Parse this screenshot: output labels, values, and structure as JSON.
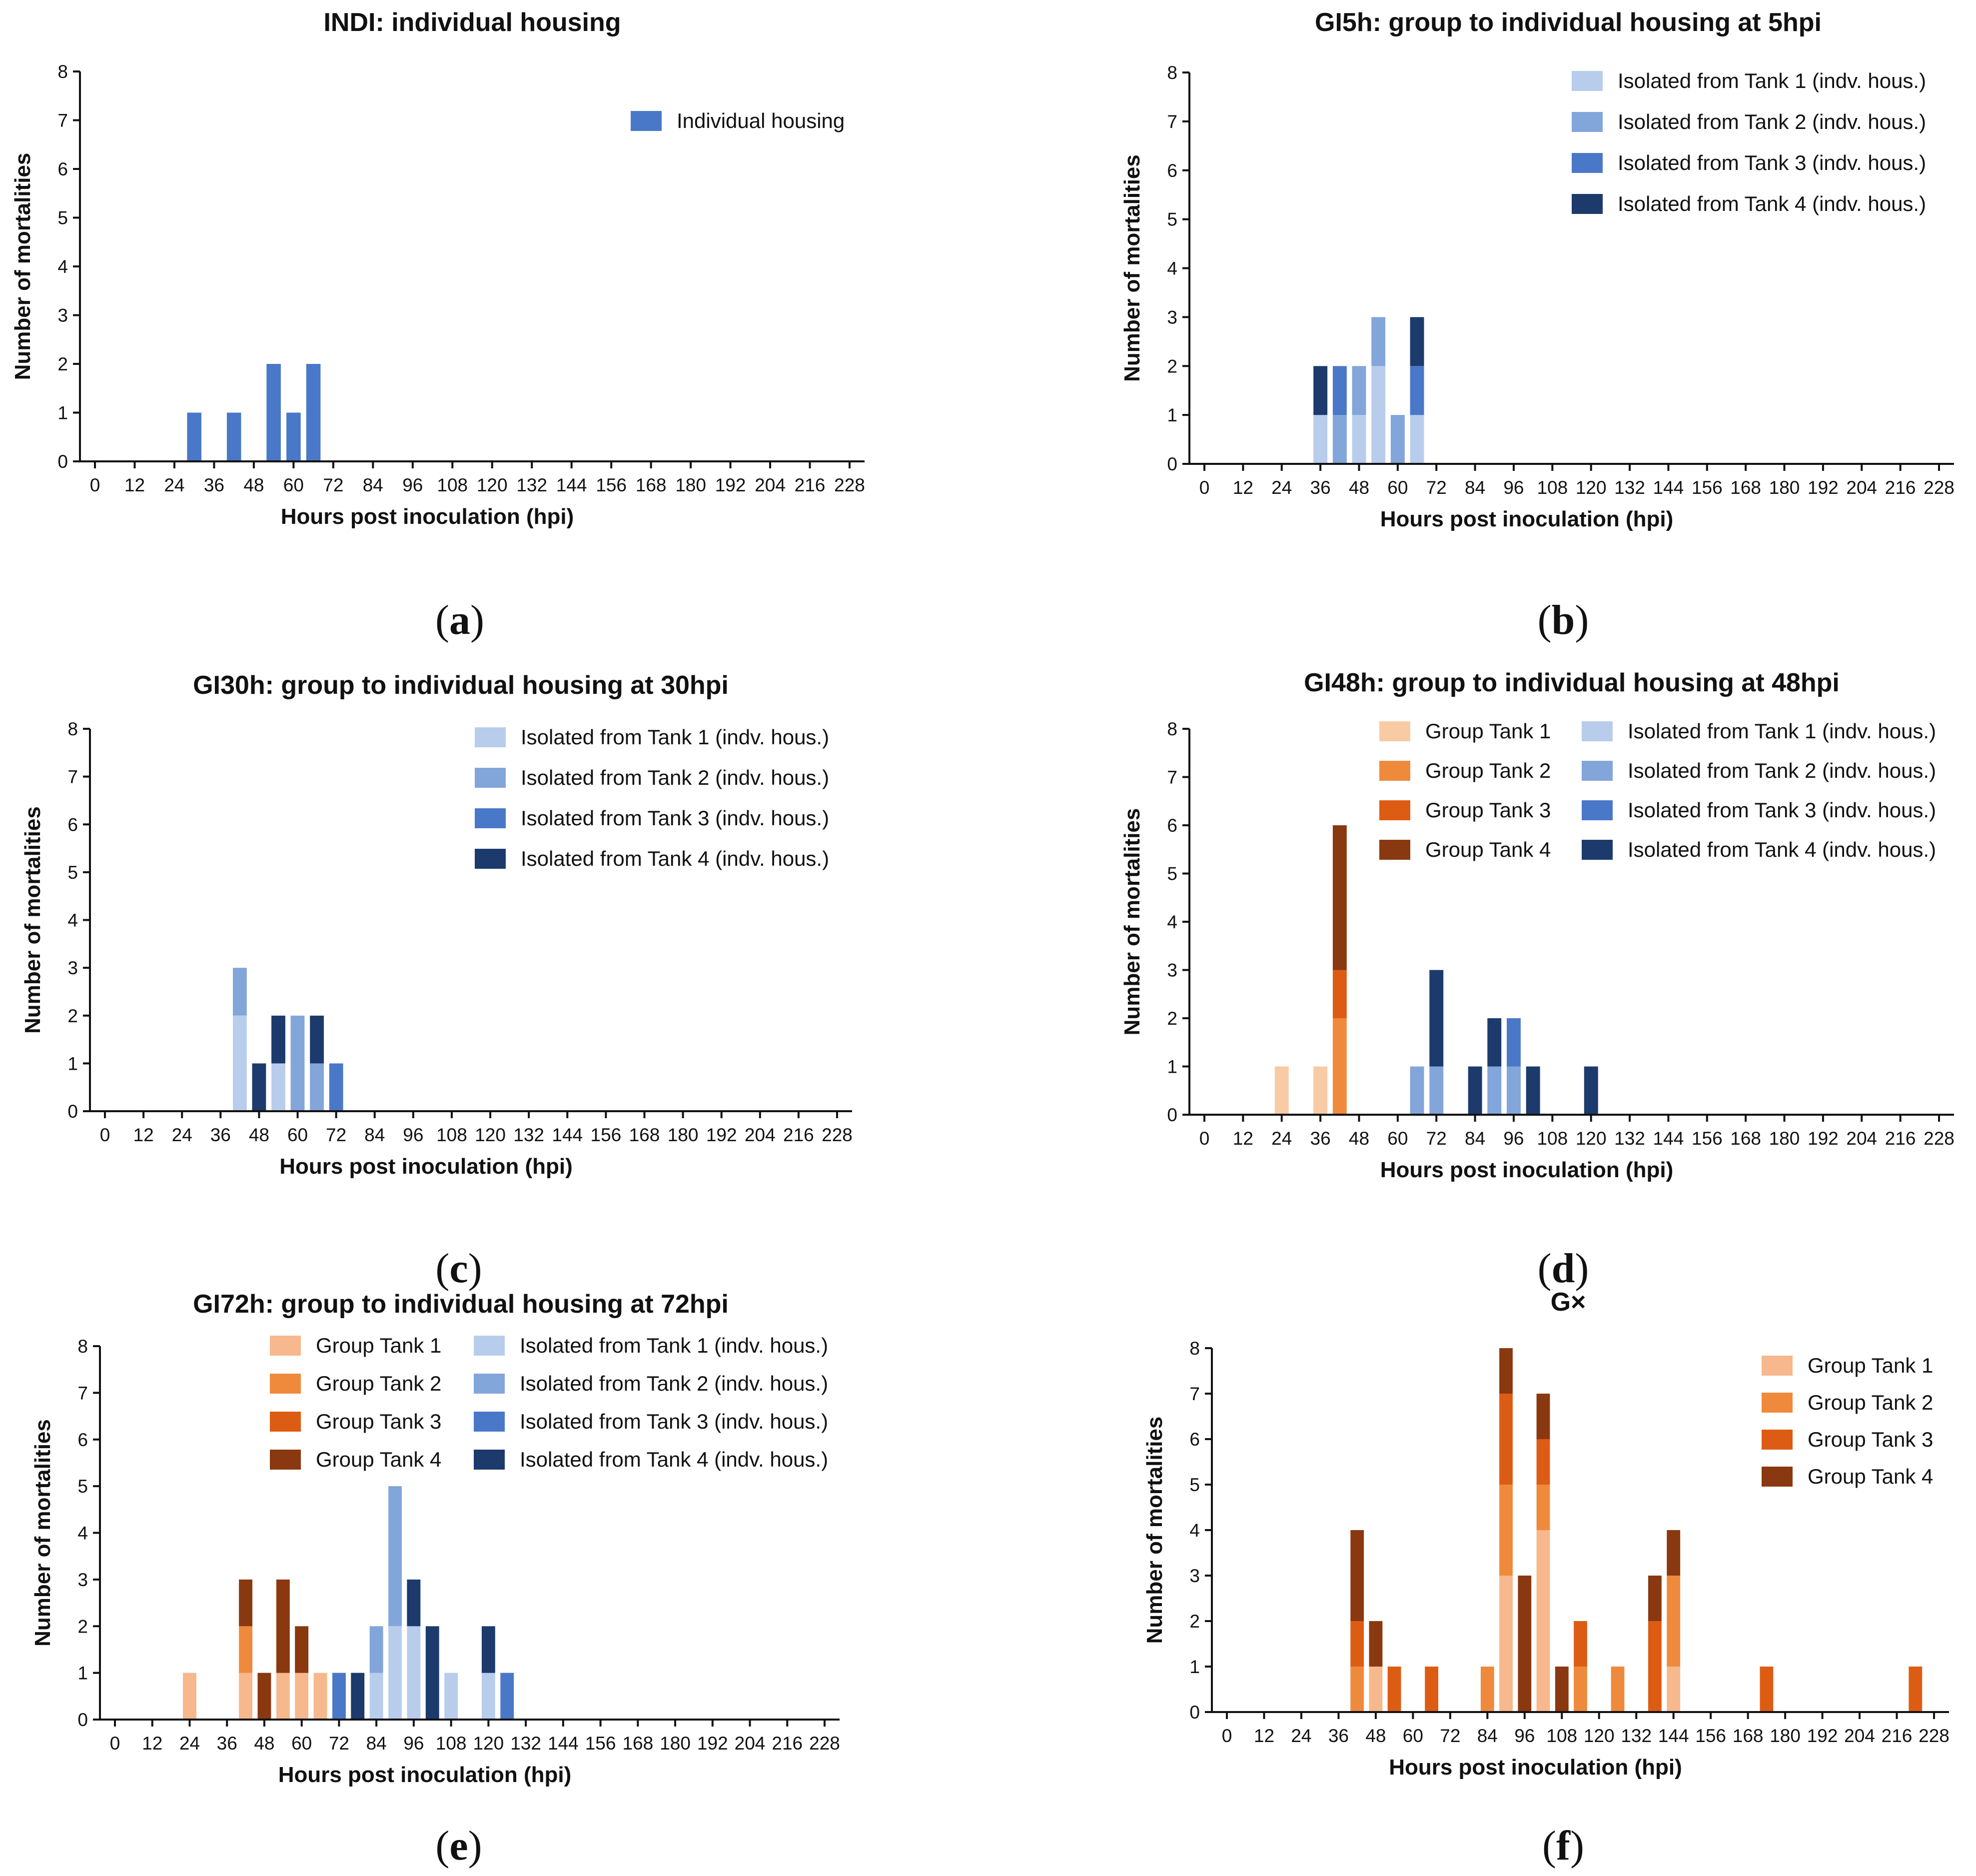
{
  "axis": {
    "xlabel": "Hours post inoculation (hpi)",
    "ylabel": "Number of mortalities",
    "xticks": [
      "0",
      "12",
      "24",
      "36",
      "48",
      "60",
      "72",
      "84",
      "96",
      "108",
      "120",
      "132",
      "144",
      "156",
      "168",
      "180",
      "192",
      "204",
      "216",
      "228"
    ],
    "yticks": [
      "0",
      "1",
      "2",
      "3",
      "4",
      "5",
      "6",
      "7",
      "8"
    ]
  },
  "colors": {
    "indiv": "#4a78c8",
    "iso1": "#b8cdec",
    "iso2": "#82a5da",
    "iso3": "#4a78c8",
    "iso4": "#1c3a6c",
    "grp1": "#f6b88c",
    "grp2": "#ef8a3c",
    "grp3": "#dd5c14",
    "grp4": "#8a3810",
    "grp1_light": "#f9cba5"
  },
  "chart_data": [
    {
      "type": "bar",
      "title": "INDI: individual housing",
      "panel_label": "a",
      "xlabel": "Hours post inoculation (hpi)",
      "ylabel": "Number of mortalities",
      "ylim": [
        0,
        8
      ],
      "xlim": [
        0,
        228
      ],
      "legend": [
        {
          "label": "Individual housing",
          "color": "#4a78c8"
        }
      ],
      "series": [
        {
          "name": "Individual housing",
          "color": "#4a78c8",
          "points": [
            [
              30,
              1
            ],
            [
              42,
              1
            ],
            [
              54,
              2
            ],
            [
              60,
              1
            ],
            [
              66,
              2
            ]
          ]
        }
      ]
    },
    {
      "type": "bar",
      "title": "GI5h: group to individual housing at 5hpi",
      "panel_label": "b",
      "xlabel": "Hours post inoculation (hpi)",
      "ylabel": "Number of mortalities",
      "ylim": [
        0,
        8
      ],
      "xlim": [
        0,
        228
      ],
      "legend": [
        {
          "label": "Isolated from Tank 1 (indv. hous.)",
          "color": "#b8cdec"
        },
        {
          "label": "Isolated from Tank 2 (indv. hous.)",
          "color": "#82a5da"
        },
        {
          "label": "Isolated from Tank 3 (indv. hous.)",
          "color": "#4a78c8"
        },
        {
          "label": "Isolated from Tank 4 (indv. hous.)",
          "color": "#1c3a6c"
        }
      ],
      "series": [
        {
          "name": "Isolated from Tank 1 (indv. hous.)",
          "color": "#b8cdec",
          "points": [
            [
              36,
              1
            ],
            [
              48,
              1
            ],
            [
              54,
              2
            ],
            [
              66,
              1
            ]
          ]
        },
        {
          "name": "Isolated from Tank 2 (indv. hous.)",
          "color": "#82a5da",
          "points": [
            [
              42,
              1
            ],
            [
              48,
              1
            ],
            [
              54,
              1
            ],
            [
              60,
              1
            ]
          ]
        },
        {
          "name": "Isolated from Tank 3 (indv. hous.)",
          "color": "#4a78c8",
          "points": [
            [
              42,
              1
            ],
            [
              66,
              1
            ]
          ]
        },
        {
          "name": "Isolated from Tank 4 (indv. hous.)",
          "color": "#1c3a6c",
          "points": [
            [
              36,
              1
            ],
            [
              66,
              1
            ]
          ]
        }
      ]
    },
    {
      "type": "bar",
      "title": "GI30h: group to individual housing at 30hpi",
      "panel_label": "c",
      "xlabel": "Hours post inoculation (hpi)",
      "ylabel": "Number of mortalities",
      "ylim": [
        0,
        8
      ],
      "xlim": [
        0,
        228
      ],
      "legend": [
        {
          "label": "Isolated from Tank 1 (indv. hous.)",
          "color": "#b8cdec"
        },
        {
          "label": "Isolated from Tank 2 (indv. hous.)",
          "color": "#82a5da"
        },
        {
          "label": "Isolated from Tank 3 (indv. hous.)",
          "color": "#4a78c8"
        },
        {
          "label": "Isolated from Tank 4 (indv. hous.)",
          "color": "#1c3a6c"
        }
      ],
      "series": [
        {
          "name": "Isolated from Tank 1 (indv. hous.)",
          "color": "#b8cdec",
          "points": [
            [
              42,
              2
            ],
            [
              54,
              1
            ]
          ]
        },
        {
          "name": "Isolated from Tank 2 (indv. hous.)",
          "color": "#82a5da",
          "points": [
            [
              42,
              1
            ],
            [
              60,
              2
            ],
            [
              66,
              1
            ]
          ]
        },
        {
          "name": "Isolated from Tank 3 (indv. hous.)",
          "color": "#4a78c8",
          "points": [
            [
              72,
              1
            ]
          ]
        },
        {
          "name": "Isolated from Tank 4 (indv. hous.)",
          "color": "#1c3a6c",
          "points": [
            [
              48,
              1
            ],
            [
              54,
              1
            ],
            [
              66,
              1
            ]
          ]
        }
      ]
    },
    {
      "type": "bar",
      "title": "GI48h: group to individual housing at 48hpi",
      "panel_label": "d",
      "xlabel": "Hours post inoculation (hpi)",
      "ylabel": "Number of mortalities",
      "ylim": [
        0,
        8
      ],
      "xlim": [
        0,
        228
      ],
      "legend": [
        {
          "label": "Group Tank 1",
          "color": "#f9cba5"
        },
        {
          "label": "Group Tank 2",
          "color": "#ef8a3c"
        },
        {
          "label": "Group Tank 3",
          "color": "#dd5c14"
        },
        {
          "label": "Group Tank 4",
          "color": "#8a3810"
        },
        {
          "label": "Isolated from Tank 1 (indv. hous.)",
          "color": "#b8cdec"
        },
        {
          "label": "Isolated from Tank 2 (indv. hous.)",
          "color": "#82a5da"
        },
        {
          "label": "Isolated from Tank 3 (indv. hous.)",
          "color": "#4a78c8"
        },
        {
          "label": "Isolated from Tank 4 (indv. hous.)",
          "color": "#1c3a6c"
        }
      ],
      "series": [
        {
          "name": "Group Tank 1",
          "color": "#f9cba5",
          "points": [
            [
              24,
              1
            ],
            [
              36,
              1
            ]
          ]
        },
        {
          "name": "Group Tank 2",
          "color": "#ef8a3c",
          "points": [
            [
              42,
              2
            ]
          ]
        },
        {
          "name": "Group Tank 3",
          "color": "#dd5c14",
          "points": [
            [
              42,
              1
            ]
          ]
        },
        {
          "name": "Group Tank 4",
          "color": "#8a3810",
          "points": [
            [
              42,
              3
            ]
          ]
        },
        {
          "name": "Isolated from Tank 1 (indv. hous.)",
          "color": "#b8cdec",
          "points": []
        },
        {
          "name": "Isolated from Tank 2 (indv. hous.)",
          "color": "#82a5da",
          "points": [
            [
              66,
              1
            ],
            [
              72,
              1
            ],
            [
              90,
              1
            ],
            [
              96,
              1
            ]
          ]
        },
        {
          "name": "Isolated from Tank 3 (indv. hous.)",
          "color": "#4a78c8",
          "points": [
            [
              96,
              1
            ]
          ]
        },
        {
          "name": "Isolated from Tank 4 (indv. hous.)",
          "color": "#1c3a6c",
          "points": [
            [
              72,
              2
            ],
            [
              84,
              1
            ],
            [
              90,
              1
            ],
            [
              102,
              1
            ],
            [
              120,
              1
            ]
          ]
        }
      ]
    },
    {
      "type": "bar",
      "title": "GI72h: group to individual housing at 72hpi",
      "panel_label": "e",
      "xlabel": "Hours post inoculation (hpi)",
      "ylabel": "Number of mortalities",
      "ylim": [
        0,
        8
      ],
      "xlim": [
        0,
        228
      ],
      "legend": [
        {
          "label": "Group Tank 1",
          "color": "#f6b88c"
        },
        {
          "label": "Group Tank 2",
          "color": "#ef8a3c"
        },
        {
          "label": "Group Tank 3",
          "color": "#dd5c14"
        },
        {
          "label": "Group Tank 4",
          "color": "#8a3810"
        },
        {
          "label": "Isolated from Tank 1 (indv. hous.)",
          "color": "#b8cdec"
        },
        {
          "label": "Isolated from Tank 2 (indv. hous.)",
          "color": "#82a5da"
        },
        {
          "label": "Isolated from Tank 3 (indv. hous.)",
          "color": "#4a78c8"
        },
        {
          "label": "Isolated from Tank 4 (indv. hous.)",
          "color": "#1c3a6c"
        }
      ],
      "series": [
        {
          "name": "Group Tank 1",
          "color": "#f6b88c",
          "points": [
            [
              24,
              1
            ],
            [
              42,
              1
            ],
            [
              54,
              1
            ],
            [
              60,
              1
            ],
            [
              66,
              1
            ]
          ]
        },
        {
          "name": "Group Tank 2",
          "color": "#ef8a3c",
          "points": [
            [
              42,
              1
            ]
          ]
        },
        {
          "name": "Group Tank 3",
          "color": "#dd5c14",
          "points": []
        },
        {
          "name": "Group Tank 4",
          "color": "#8a3810",
          "points": [
            [
              42,
              1
            ],
            [
              48,
              1
            ],
            [
              54,
              2
            ],
            [
              60,
              1
            ]
          ]
        },
        {
          "name": "Isolated from Tank 1 (indv. hous.)",
          "color": "#b8cdec",
          "points": [
            [
              84,
              1
            ],
            [
              90,
              2
            ],
            [
              96,
              2
            ],
            [
              108,
              1
            ],
            [
              120,
              1
            ]
          ]
        },
        {
          "name": "Isolated from Tank 2 (indv. hous.)",
          "color": "#82a5da",
          "points": [
            [
              84,
              1
            ],
            [
              90,
              3
            ]
          ]
        },
        {
          "name": "Isolated from Tank 3 (indv. hous.)",
          "color": "#4a78c8",
          "points": [
            [
              72,
              1
            ],
            [
              126,
              1
            ]
          ]
        },
        {
          "name": "Isolated from Tank 4 (indv. hous.)",
          "color": "#1c3a6c",
          "points": [
            [
              78,
              1
            ],
            [
              96,
              1
            ],
            [
              102,
              2
            ],
            [
              120,
              1
            ]
          ]
        }
      ]
    },
    {
      "type": "bar",
      "title": "G×",
      "panel_label": "f",
      "xlabel": "Hours post inoculation (hpi)",
      "ylabel": "Number of mortalities",
      "ylim": [
        0,
        8
      ],
      "xlim": [
        0,
        228
      ],
      "legend": [
        {
          "label": "Group Tank 1",
          "color": "#f6b88c"
        },
        {
          "label": "Group Tank 2",
          "color": "#ef8a3c"
        },
        {
          "label": "Group Tank 3",
          "color": "#dd5c14"
        },
        {
          "label": "Group Tank 4",
          "color": "#8a3810"
        }
      ],
      "series": [
        {
          "name": "Group Tank 1",
          "color": "#f6b88c",
          "points": [
            [
              48,
              1
            ],
            [
              90,
              3
            ],
            [
              102,
              4
            ],
            [
              144,
              1
            ]
          ]
        },
        {
          "name": "Group Tank 2",
          "color": "#ef8a3c",
          "points": [
            [
              42,
              1
            ],
            [
              84,
              1
            ],
            [
              90,
              2
            ],
            [
              102,
              1
            ],
            [
              114,
              1
            ],
            [
              126,
              1
            ],
            [
              144,
              2
            ]
          ]
        },
        {
          "name": "Group Tank 3",
          "color": "#dd5c14",
          "points": [
            [
              42,
              1
            ],
            [
              54,
              1
            ],
            [
              66,
              1
            ],
            [
              90,
              2
            ],
            [
              102,
              1
            ],
            [
              114,
              1
            ],
            [
              138,
              2
            ],
            [
              174,
              1
            ],
            [
              222,
              1
            ]
          ]
        },
        {
          "name": "Group Tank 4",
          "color": "#8a3810",
          "points": [
            [
              42,
              2
            ],
            [
              48,
              1
            ],
            [
              90,
              1
            ],
            [
              96,
              3
            ],
            [
              102,
              1
            ],
            [
              108,
              1
            ],
            [
              138,
              1
            ],
            [
              144,
              1
            ]
          ]
        }
      ]
    }
  ]
}
